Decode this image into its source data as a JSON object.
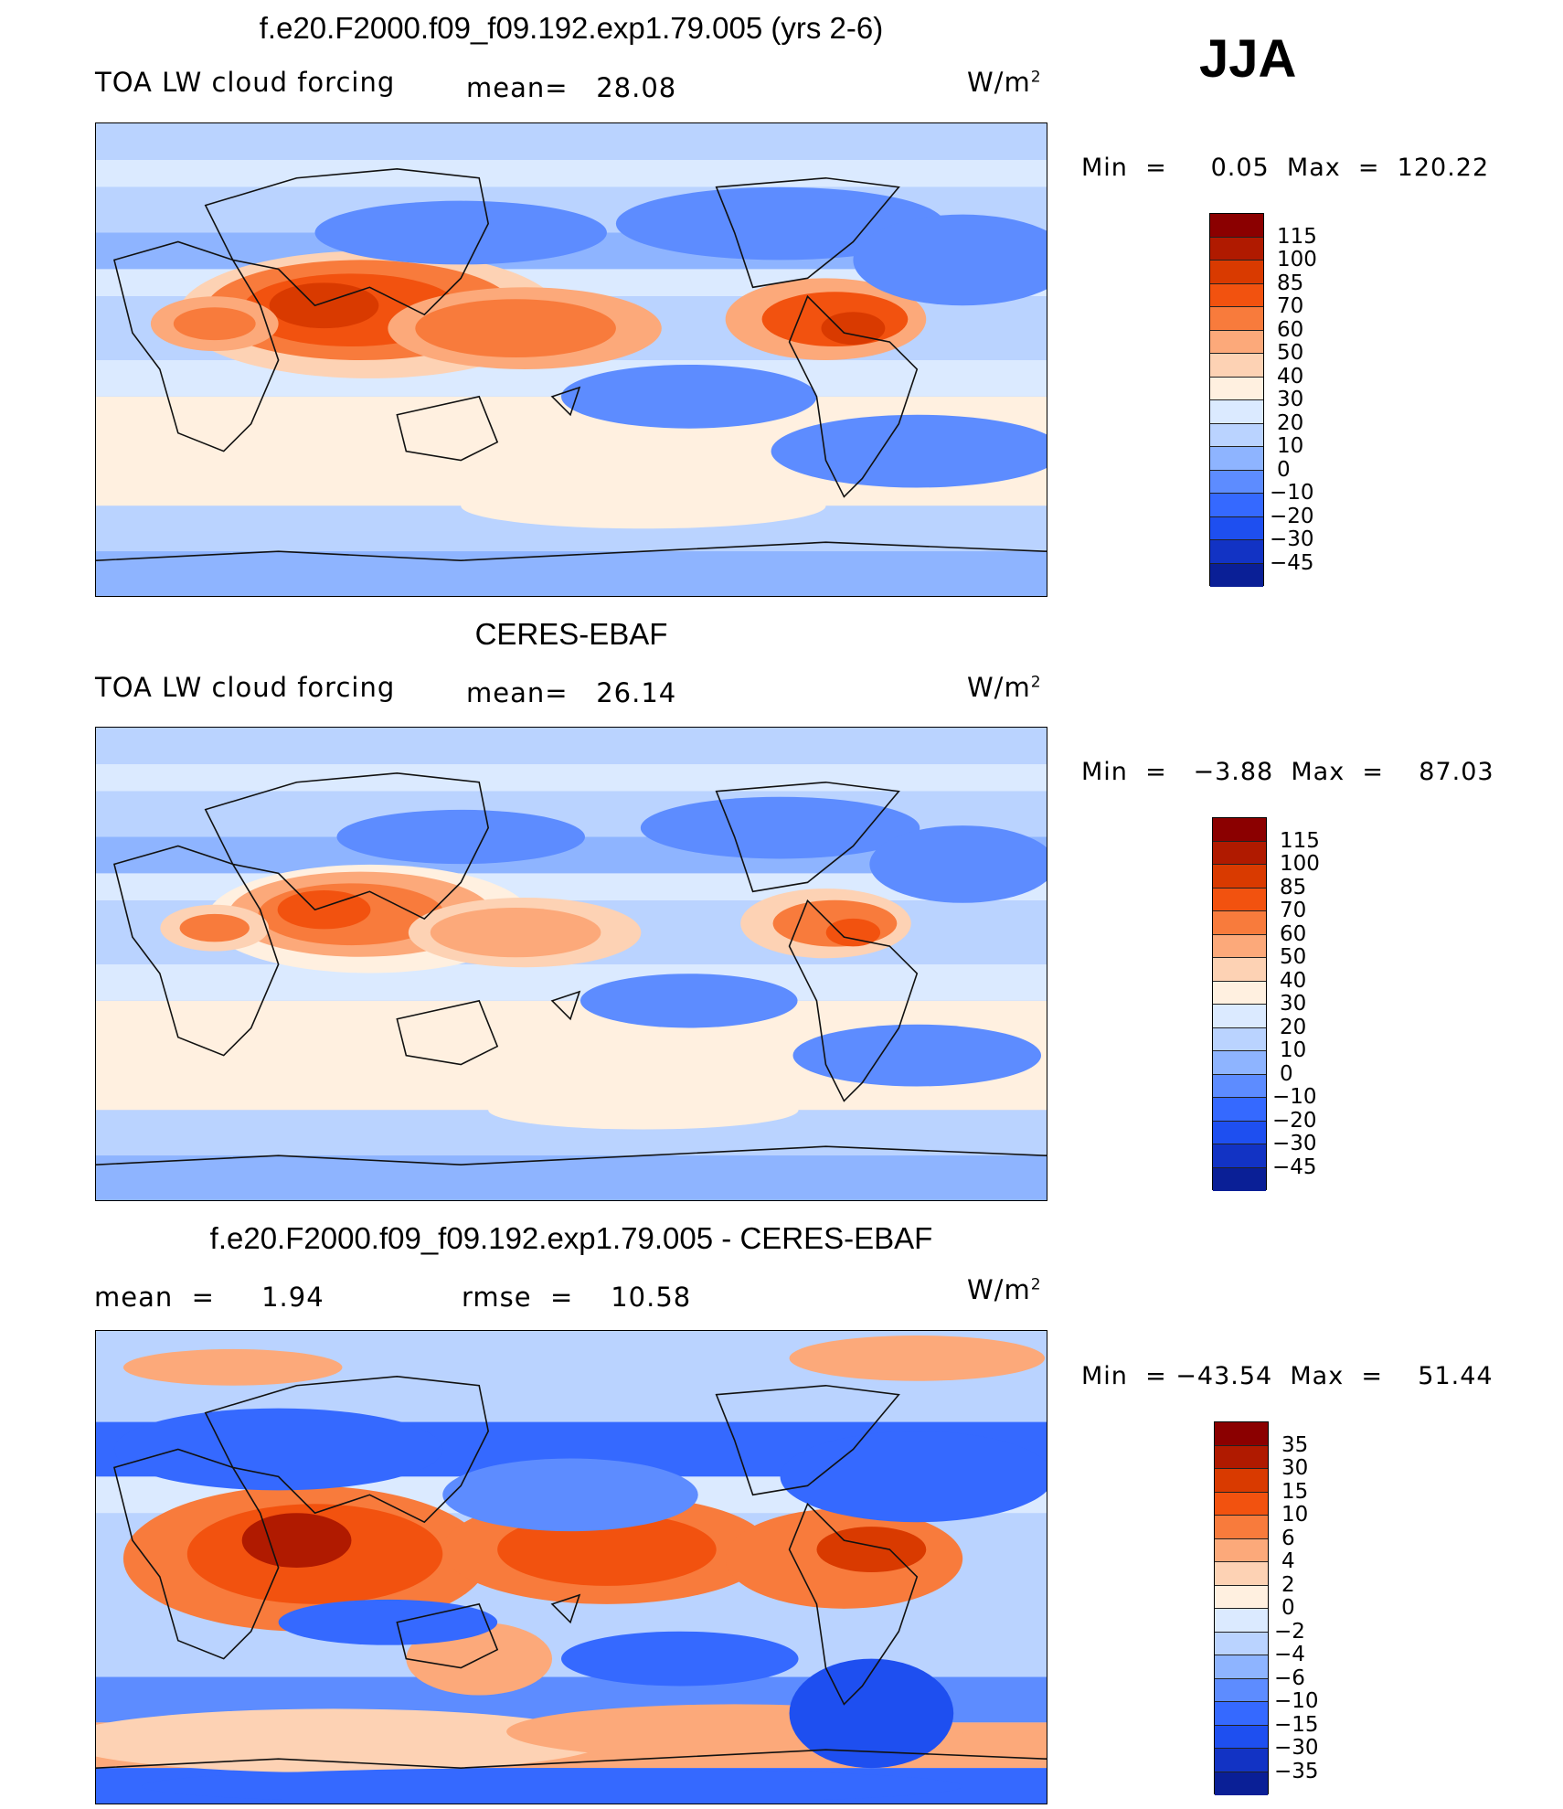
{
  "season": "JJA",
  "colors": {
    "cbar": [
      "#8b0000",
      "#b01a00",
      "#d93a00",
      "#f2520f",
      "#f87b3c",
      "#fca97a",
      "#fdd2b4",
      "#fff0e0",
      "#dbeaff",
      "#bad3ff",
      "#8eb4ff",
      "#5d8cff",
      "#3569ff",
      "#1e4ff0",
      "#1233c4",
      "#0a1f96",
      "#000e6e"
    ],
    "land": "#111111"
  },
  "panels": [
    {
      "title": "f.e20.F2000.f09_f09.192.exp1.79.005 (yrs 2-6)",
      "left_label": "TOA LW cloud forcing",
      "center_label": "mean=   28.08",
      "units": "W/m",
      "units_sup": "2",
      "minmax": "Min  =     0.05  Max  =  120.22",
      "levels": [
        "115",
        "100",
        "85",
        "70",
        "60",
        "50",
        "40",
        "30",
        "20",
        "10",
        "0",
        "−10",
        "−20",
        "−30",
        "−45"
      ]
    },
    {
      "title": "CERES-EBAF",
      "left_label": "TOA LW cloud forcing",
      "center_label": "mean=   26.14",
      "units": "W/m",
      "units_sup": "2",
      "minmax": "Min  =   −3.88  Max  =    87.03",
      "levels": [
        "115",
        "100",
        "85",
        "70",
        "60",
        "50",
        "40",
        "30",
        "20",
        "10",
        "0",
        "−10",
        "−20",
        "−30",
        "−45"
      ]
    },
    {
      "title": "f.e20.F2000.f09_f09.192.exp1.79.005 - CERES-EBAF",
      "left_label": "mean  =     1.94",
      "center_label": "rmse  =    10.58",
      "units": "W/m",
      "units_sup": "2",
      "minmax": "Min  = −43.54  Max  =    51.44",
      "levels": [
        "35",
        "30",
        "15",
        "10",
        "6",
        "4",
        "2",
        "0",
        "−2",
        "−4",
        "−6",
        "−10",
        "−15",
        "−30",
        "−35"
      ]
    }
  ]
}
